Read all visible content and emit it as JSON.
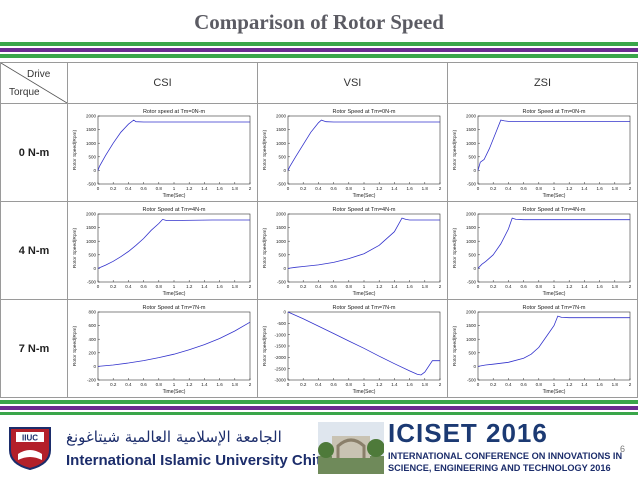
{
  "title": "Comparison of Rotor Speed",
  "colors": {
    "green": "#3aa64a",
    "purple": "#6b2c91",
    "curve": "#3333cc",
    "title": "#5b5b63"
  },
  "table": {
    "corner_top": "Drive",
    "corner_bottom": "Torque",
    "columns": [
      "CSI",
      "VSI",
      "ZSI"
    ],
    "rows": [
      "0 N-m",
      "4 N-m",
      "7 N-m"
    ]
  },
  "chart_data": [
    {
      "type": "line",
      "row": 0,
      "col": 0,
      "title": "Rotor speed at Tm=0N-m",
      "xlabel": "Time(Sec)",
      "ylabel": "Rotor Speed(Rpm)",
      "xlim": [
        0,
        2
      ],
      "ylim": [
        -500,
        2000
      ],
      "yticks": [
        -500,
        0,
        500,
        1000,
        1500,
        2000
      ],
      "x": [
        0,
        0.02,
        0.1,
        0.2,
        0.3,
        0.4,
        0.47,
        0.5,
        0.6,
        1.0,
        1.5,
        2.0
      ],
      "y": [
        0,
        150,
        550,
        1000,
        1400,
        1700,
        1850,
        1790,
        1780,
        1780,
        1780,
        1780
      ]
    },
    {
      "type": "line",
      "row": 0,
      "col": 1,
      "title": "Rotor Speed at Tm=0N-m",
      "xlabel": "Time(Sec)",
      "ylabel": "Rotor Speed(Rpm)",
      "xlim": [
        0,
        2
      ],
      "ylim": [
        -500,
        2000
      ],
      "yticks": [
        -500,
        0,
        500,
        1000,
        1500,
        2000
      ],
      "x": [
        0,
        0.02,
        0.1,
        0.2,
        0.3,
        0.4,
        0.44,
        0.5,
        0.6,
        1.0,
        1.5,
        2.0
      ],
      "y": [
        0,
        120,
        500,
        950,
        1400,
        1750,
        1850,
        1790,
        1780,
        1780,
        1780,
        1780
      ]
    },
    {
      "type": "line",
      "row": 0,
      "col": 2,
      "title": "Rotor Speed at Tm=0N-m",
      "xlabel": "Time(Sec)",
      "ylabel": "Rotor Speed(Rpm)",
      "xlim": [
        0,
        2
      ],
      "ylim": [
        -500,
        2000
      ],
      "yticks": [
        -500,
        0,
        500,
        1000,
        1500,
        2000
      ],
      "x": [
        0,
        0.03,
        0.08,
        0.15,
        0.25,
        0.3,
        0.35,
        0.4,
        0.6,
        1.0,
        1.5,
        2.0
      ],
      "y": [
        0,
        300,
        400,
        800,
        1500,
        1850,
        1820,
        1800,
        1800,
        1800,
        1800,
        1800
      ]
    },
    {
      "type": "line",
      "row": 1,
      "col": 0,
      "title": "Rotor Speed at Tm=4N-m",
      "xlabel": "Time(Sec)",
      "ylabel": "Rotor Speed(Rpm)",
      "xlim": [
        0,
        2
      ],
      "ylim": [
        -500,
        2000
      ],
      "yticks": [
        -500,
        0,
        500,
        1000,
        1500,
        2000
      ],
      "x": [
        0,
        0.1,
        0.2,
        0.3,
        0.4,
        0.5,
        0.6,
        0.7,
        0.8,
        0.85,
        0.9,
        1.0,
        1.5,
        2.0
      ],
      "y": [
        0,
        120,
        260,
        430,
        620,
        850,
        1100,
        1400,
        1650,
        1800,
        1760,
        1760,
        1780,
        1780
      ]
    },
    {
      "type": "line",
      "row": 1,
      "col": 1,
      "title": "Rotor Speed at Tm=4N-m",
      "xlabel": "Time(Sec)",
      "ylabel": "Rotor Speed(Rpm)",
      "xlim": [
        0,
        2
      ],
      "ylim": [
        -500,
        2000
      ],
      "yticks": [
        -500,
        0,
        500,
        1000,
        1500,
        2000
      ],
      "x": [
        0,
        0.1,
        0.2,
        0.4,
        0.6,
        0.8,
        1.0,
        1.2,
        1.4,
        1.5,
        1.55,
        1.6,
        2.0
      ],
      "y": [
        0,
        40,
        70,
        130,
        220,
        360,
        540,
        850,
        1350,
        1850,
        1800,
        1780,
        1780
      ]
    },
    {
      "type": "line",
      "row": 1,
      "col": 2,
      "title": "Rotor Speed at Tm=4N-m",
      "xlabel": "Time(Sec)",
      "ylabel": "Rotor Speed(Rpm)",
      "xlim": [
        0,
        2
      ],
      "ylim": [
        -500,
        2000
      ],
      "yticks": [
        -500,
        0,
        500,
        1000,
        1500,
        2000
      ],
      "x": [
        0,
        0.05,
        0.1,
        0.2,
        0.3,
        0.4,
        0.45,
        0.5,
        0.6,
        1.0,
        1.5,
        2.0
      ],
      "y": [
        0,
        150,
        250,
        500,
        900,
        1450,
        1850,
        1800,
        1790,
        1790,
        1790,
        1790
      ]
    },
    {
      "type": "line",
      "row": 2,
      "col": 0,
      "title": "Rotor Speed at Tm=7N-m",
      "xlabel": "Time(Sec)",
      "ylabel": "Rotor Speed(Rpm)",
      "xlim": [
        0,
        2
      ],
      "ylim": [
        -200,
        800
      ],
      "yticks": [
        -200,
        0,
        200,
        400,
        600,
        800
      ],
      "x": [
        0,
        0.2,
        0.4,
        0.6,
        0.8,
        1.0,
        1.2,
        1.4,
        1.6,
        1.8,
        2.0
      ],
      "y": [
        0,
        20,
        50,
        85,
        130,
        180,
        245,
        320,
        410,
        520,
        650
      ]
    },
    {
      "type": "line",
      "row": 2,
      "col": 1,
      "title": "Rotor Speed at Tm=7N-m",
      "xlabel": "Time(Sec)",
      "ylabel": "Rotor Speed(Rpm)",
      "xlim": [
        0,
        2
      ],
      "ylim": [
        -3000,
        0
      ],
      "yticks": [
        -3000,
        -2500,
        -2000,
        -1500,
        -1000,
        -500,
        0
      ],
      "x": [
        0,
        0.2,
        0.4,
        0.6,
        0.8,
        1.0,
        1.2,
        1.4,
        1.6,
        1.7,
        1.75,
        1.8,
        1.9,
        2.0
      ],
      "y": [
        0,
        -300,
        -620,
        -950,
        -1280,
        -1600,
        -1950,
        -2280,
        -2600,
        -2750,
        -2780,
        -2650,
        -2150,
        -2150
      ]
    },
    {
      "type": "line",
      "row": 2,
      "col": 2,
      "title": "Rotor Speed at Tm=7N-m",
      "xlabel": "Time(Sec)",
      "ylabel": "Rotor Speed(Rpm)",
      "xlim": [
        0,
        2
      ],
      "ylim": [
        -500,
        2000
      ],
      "yticks": [
        -500,
        0,
        500,
        1000,
        1500,
        2000
      ],
      "x": [
        0,
        0.1,
        0.2,
        0.4,
        0.6,
        0.7,
        0.8,
        0.9,
        1.0,
        1.05,
        1.1,
        1.2,
        1.5,
        2.0
      ],
      "y": [
        0,
        50,
        80,
        150,
        300,
        450,
        700,
        1100,
        1500,
        1850,
        1800,
        1790,
        1790,
        1790
      ]
    }
  ],
  "xticks": [
    "0",
    "0.2",
    "0.4",
    "0.6",
    "0.8",
    "1",
    "1.2",
    "1.4",
    "1.6",
    "1.8",
    "2"
  ],
  "footer": {
    "university_arabic": "الجامعة الإسلامية العالمية شيتاغونغ",
    "university_english": "International Islamic University Chittagong",
    "logo_text": "IIUC",
    "conference_name": "ICISET 2016",
    "conference_line1": "INTERNATIONAL CONFERENCE ON INNOVATIONS IN",
    "conference_line2": "SCIENCE, ENGINEERING AND TECHNOLOGY 2016",
    "page_number": "6"
  }
}
